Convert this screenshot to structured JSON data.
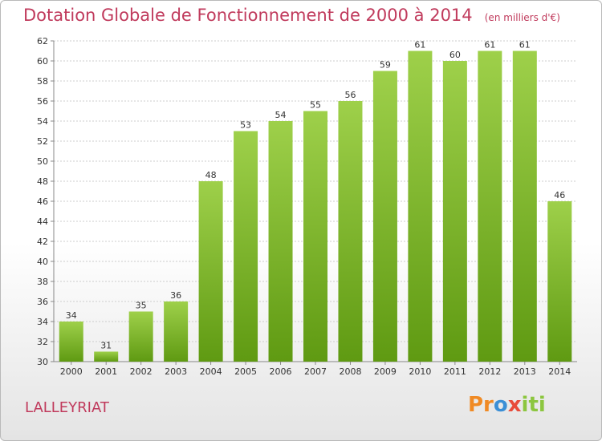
{
  "chart_title": "Dotation Globale de Fonctionnement de 2000 à 2014",
  "chart_subtitle": "(en milliers d'€)",
  "commune": "LALLEYRIAT",
  "logo": {
    "p1": "Pr",
    "p2": "o",
    "p3": "x",
    "p4": "iti"
  },
  "colors": {
    "bar_light": "#9ed04a",
    "bar_dark": "#5f9a12",
    "title": "#c03a5c",
    "grid": "#c8c8c8"
  },
  "chart_data": {
    "type": "bar",
    "categories": [
      "2000",
      "2001",
      "2002",
      "2003",
      "2004",
      "2005",
      "2006",
      "2007",
      "2008",
      "2009",
      "2010",
      "2011",
      "2012",
      "2013",
      "2014"
    ],
    "values": [
      34,
      31,
      35,
      36,
      48,
      53,
      54,
      55,
      56,
      59,
      61,
      60,
      61,
      61,
      46
    ],
    "title": "Dotation Globale de Fonctionnement de 2000 à 2014",
    "subtitle": "(en milliers d'€)",
    "ylim": [
      30,
      62
    ],
    "yticks": [
      30,
      32,
      34,
      36,
      38,
      40,
      42,
      44,
      46,
      48,
      50,
      52,
      54,
      56,
      58,
      60,
      62
    ],
    "grid": true,
    "data_labels": true
  }
}
